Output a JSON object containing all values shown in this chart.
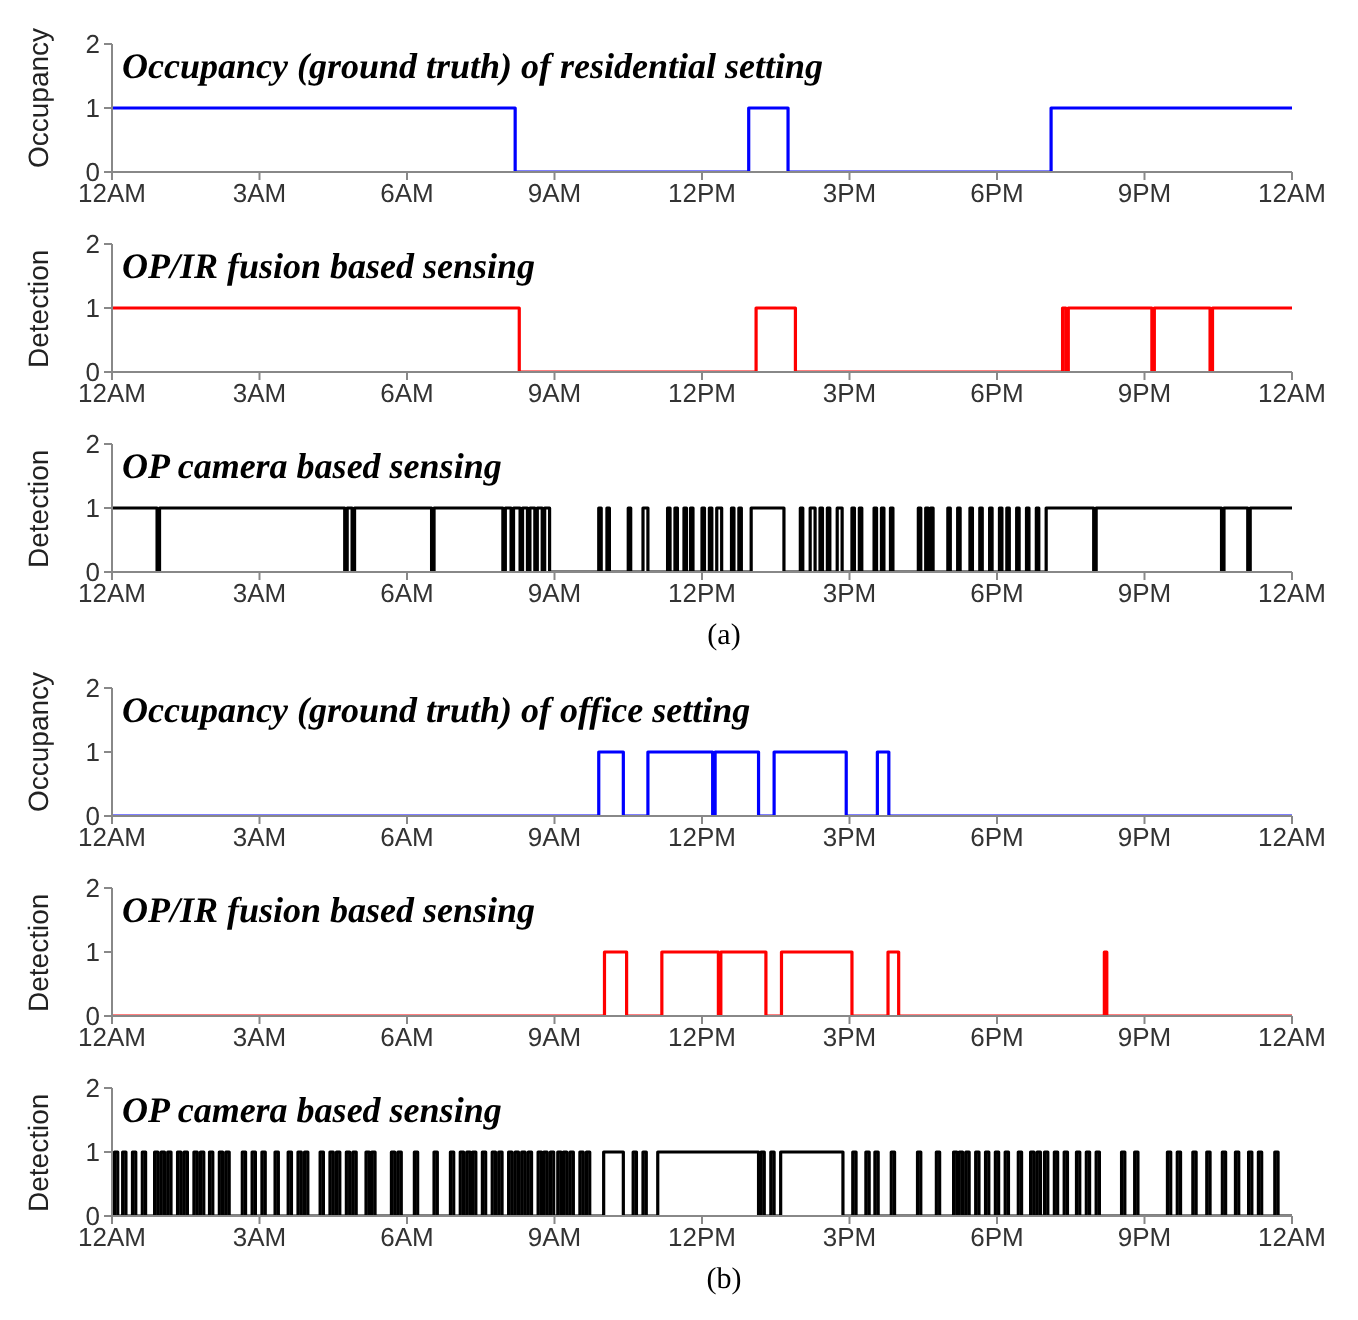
{
  "chart_data": [
    {
      "type": "step",
      "title": "Occupancy (ground truth) of residential setting",
      "ylabel": "Occupancy",
      "xlim": [
        "--01-01T00:00",
        "--01-02T00:00"
      ],
      "xticks": [
        {
          "value": "--01-01T00:00",
          "label": "12AM"
        },
        {
          "value": "--01-01T03:00",
          "label": "3AM"
        },
        {
          "value": "--01-01T06:00",
          "label": "6AM"
        },
        {
          "value": "--01-01T09:00",
          "label": "9AM"
        },
        {
          "value": "--01-01T12:00",
          "label": "12PM"
        },
        {
          "value": "--01-01T15:00",
          "label": "3PM"
        },
        {
          "value": "--01-01T18:00",
          "label": "6PM"
        },
        {
          "value": "--01-01T21:00",
          "label": "9PM"
        },
        {
          "value": "--01-02T00:00",
          "label": "12AM"
        }
      ],
      "ylim": [
        0,
        2
      ],
      "yticks": [
        0,
        1,
        2
      ],
      "series": [
        {
          "color": "#0000ff",
          "x": [
            "--01-01T00:00",
            "--01-01T08:12",
            "--01-01T12:57",
            "--01-01T13:45",
            "--01-01T19:06",
            "--01-02T00:00"
          ],
          "values": [
            1,
            0,
            1,
            0,
            1,
            1
          ]
        }
      ]
    },
    {
      "type": "step",
      "title": "OP/IR fusion based sensing",
      "ylabel": "Detection",
      "xlim": [
        "--01-01T00:00",
        "--01-02T00:00"
      ],
      "xticks": [
        {
          "value": "--01-01T00:00",
          "label": "12AM"
        },
        {
          "value": "--01-01T03:00",
          "label": "3AM"
        },
        {
          "value": "--01-01T06:00",
          "label": "6AM"
        },
        {
          "value": "--01-01T09:00",
          "label": "9AM"
        },
        {
          "value": "--01-01T12:00",
          "label": "12PM"
        },
        {
          "value": "--01-01T15:00",
          "label": "3PM"
        },
        {
          "value": "--01-01T18:00",
          "label": "6PM"
        },
        {
          "value": "--01-01T21:00",
          "label": "9PM"
        },
        {
          "value": "--01-02T00:00",
          "label": "12AM"
        }
      ],
      "ylim": [
        0,
        2
      ],
      "yticks": [
        0,
        1,
        2
      ],
      "series": [
        {
          "color": "#ff0000",
          "x": [
            "--01-01T00:00",
            "--01-01T08:17",
            "--01-01T13:06",
            "--01-01T13:54",
            "--01-01T19:20",
            "--01-01T19:24",
            "--01-01T19:27",
            "--01-01T21:09",
            "--01-01T21:12",
            "--01-01T22:20",
            "--01-01T22:23",
            "--01-02T00:00"
          ],
          "values": [
            1,
            0,
            1,
            0,
            1,
            0,
            1,
            0,
            1,
            0,
            1,
            1
          ]
        }
      ]
    },
    {
      "type": "step",
      "title": "OP camera based sensing",
      "ylabel": "Detection",
      "xlim": [
        "--01-01T00:00",
        "--01-02T00:00"
      ],
      "xticks": [
        {
          "value": "--01-01T00:00",
          "label": "12AM"
        },
        {
          "value": "--01-01T03:00",
          "label": "3AM"
        },
        {
          "value": "--01-01T06:00",
          "label": "6AM"
        },
        {
          "value": "--01-01T09:00",
          "label": "9AM"
        },
        {
          "value": "--01-01T12:00",
          "label": "12PM"
        },
        {
          "value": "--01-01T15:00",
          "label": "3PM"
        },
        {
          "value": "--01-01T18:00",
          "label": "6PM"
        },
        {
          "value": "--01-01T21:00",
          "label": "9PM"
        },
        {
          "value": "--01-02T00:00",
          "label": "12AM"
        }
      ],
      "ylim": [
        0,
        2
      ],
      "yticks": [
        0,
        1,
        2
      ],
      "annotations": [
        "(a)"
      ],
      "series": [
        {
          "color": "#000000",
          "x": [
            "--01-01T00:00",
            "--01-01T00:55",
            "--01-01T00:58",
            "--01-01T04:44",
            "--01-01T04:47",
            "--01-01T04:53",
            "--01-01T04:56",
            "--01-01T06:30",
            "--01-01T06:33",
            "--01-01T07:57",
            "--01-01T08:00",
            "--01-01T08:07",
            "--01-01T08:10",
            "--01-01T08:18",
            "--01-01T08:21",
            "--01-01T08:27",
            "--01-01T08:30",
            "--01-01T08:36",
            "--01-01T08:39",
            "--01-01T08:45",
            "--01-01T08:48",
            "--01-01T08:54",
            "--01-01T09:54",
            "--01-01T09:57",
            "--01-01T10:04",
            "--01-01T10:07",
            "--01-01T10:30",
            "--01-01T10:33",
            "--01-01T10:48",
            "--01-01T10:54",
            "--01-01T11:18",
            "--01-01T11:21",
            "--01-01T11:27",
            "--01-01T11:30",
            "--01-01T11:38",
            "--01-01T11:41",
            "--01-01T11:46",
            "--01-01T11:49",
            "--01-01T12:00",
            "--01-01T12:03",
            "--01-01T12:09",
            "--01-01T12:12",
            "--01-01T12:18",
            "--01-01T12:24",
            "--01-01T12:36",
            "--01-01T12:39",
            "--01-01T12:45",
            "--01-01T12:48",
            "--01-01T13:00",
            "--01-01T13:40",
            "--01-01T14:00",
            "--01-01T14:03",
            "--01-01T14:12",
            "--01-01T14:18",
            "--01-01T14:24",
            "--01-01T14:27",
            "--01-01T14:33",
            "--01-01T14:36",
            "--01-01T14:45",
            "--01-01T14:51",
            "--01-01T15:03",
            "--01-01T15:06",
            "--01-01T15:12",
            "--01-01T15:15",
            "--01-01T15:30",
            "--01-01T15:33",
            "--01-01T15:39",
            "--01-01T15:42",
            "--01-01T15:50",
            "--01-01T15:53",
            "--01-01T16:24",
            "--01-01T16:27",
            "--01-01T16:33",
            "--01-01T16:36",
            "--01-01T16:39",
            "--01-01T16:42",
            "--01-01T17:00",
            "--01-01T17:03",
            "--01-01T17:12",
            "--01-01T17:15",
            "--01-01T17:27",
            "--01-01T17:30",
            "--01-01T17:39",
            "--01-01T17:42",
            "--01-01T17:51",
            "--01-01T17:54",
            "--01-01T18:03",
            "--01-01T18:06",
            "--01-01T18:12",
            "--01-01T18:15",
            "--01-01T18:24",
            "--01-01T18:27",
            "--01-01T18:36",
            "--01-01T18:39",
            "--01-01T18:48",
            "--01-01T18:51",
            "--01-01T19:00",
            "--01-01T19:58",
            "--01-01T20:01",
            "--01-01T22:34",
            "--01-01T22:37",
            "--01-01T23:06",
            "--01-01T23:09",
            "--01-02T00:00"
          ],
          "values": [
            1,
            0,
            1,
            0,
            1,
            0,
            1,
            0,
            1,
            0,
            1,
            0,
            1,
            0,
            1,
            0,
            1,
            0,
            1,
            0,
            1,
            0,
            1,
            0,
            1,
            0,
            1,
            0,
            1,
            0,
            1,
            0,
            1,
            0,
            1,
            0,
            1,
            0,
            1,
            0,
            1,
            0,
            1,
            0,
            1,
            0,
            1,
            0,
            1,
            0,
            1,
            0,
            1,
            0,
            1,
            0,
            1,
            0,
            1,
            0,
            1,
            0,
            1,
            0,
            1,
            0,
            1,
            0,
            1,
            0,
            1,
            0,
            1,
            0,
            1,
            0,
            1,
            0,
            1,
            0,
            1,
            0,
            1,
            0,
            1,
            0,
            1,
            0,
            1,
            0,
            1,
            0,
            1,
            0,
            1,
            0,
            1,
            0,
            1,
            0,
            1,
            0,
            1,
            1
          ]
        }
      ]
    },
    {
      "type": "step",
      "title": "Occupancy (ground truth) of office setting",
      "ylabel": "Occupancy",
      "xlim": [
        "--01-01T00:00",
        "--01-02T00:00"
      ],
      "xticks": [
        {
          "value": "--01-01T00:00",
          "label": "12AM"
        },
        {
          "value": "--01-01T03:00",
          "label": "3AM"
        },
        {
          "value": "--01-01T06:00",
          "label": "6AM"
        },
        {
          "value": "--01-01T09:00",
          "label": "9AM"
        },
        {
          "value": "--01-01T12:00",
          "label": "12PM"
        },
        {
          "value": "--01-01T15:00",
          "label": "3PM"
        },
        {
          "value": "--01-01T18:00",
          "label": "6PM"
        },
        {
          "value": "--01-01T21:00",
          "label": "9PM"
        },
        {
          "value": "--01-02T00:00",
          "label": "12AM"
        }
      ],
      "ylim": [
        0,
        2
      ],
      "yticks": [
        0,
        1,
        2
      ],
      "series": [
        {
          "color": "#0000ff",
          "x": [
            "--01-01T00:00",
            "--01-01T09:54",
            "--01-01T10:24",
            "--01-01T10:54",
            "--01-01T12:13",
            "--01-01T12:16",
            "--01-01T13:09",
            "--01-01T13:28",
            "--01-01T14:56",
            "--01-01T15:34",
            "--01-01T15:48",
            "--01-02T00:00"
          ],
          "values": [
            0,
            1,
            0,
            1,
            0,
            1,
            0,
            1,
            0,
            1,
            0,
            0
          ]
        }
      ]
    },
    {
      "type": "step",
      "title": "OP/IR fusion based sensing",
      "ylabel": "Detection",
      "xlim": [
        "--01-01T00:00",
        "--01-02T00:00"
      ],
      "xticks": [
        {
          "value": "--01-01T00:00",
          "label": "12AM"
        },
        {
          "value": "--01-01T03:00",
          "label": "3AM"
        },
        {
          "value": "--01-01T06:00",
          "label": "6AM"
        },
        {
          "value": "--01-01T09:00",
          "label": "9AM"
        },
        {
          "value": "--01-01T12:00",
          "label": "12PM"
        },
        {
          "value": "--01-01T15:00",
          "label": "3PM"
        },
        {
          "value": "--01-01T18:00",
          "label": "6PM"
        },
        {
          "value": "--01-01T21:00",
          "label": "9PM"
        },
        {
          "value": "--01-02T00:00",
          "label": "12AM"
        }
      ],
      "ylim": [
        0,
        2
      ],
      "yticks": [
        0,
        1,
        2
      ],
      "series": [
        {
          "color": "#ff0000",
          "x": [
            "--01-01T00:00",
            "--01-01T10:01",
            "--01-01T10:28",
            "--01-01T11:11",
            "--01-01T12:20",
            "--01-01T12:23",
            "--01-01T13:18",
            "--01-01T13:37",
            "--01-01T15:03",
            "--01-01T15:47",
            "--01-01T16:00",
            "--01-01T20:11",
            "--01-01T20:14",
            "--01-02T00:00"
          ],
          "values": [
            0,
            1,
            0,
            1,
            0,
            1,
            0,
            1,
            0,
            1,
            0,
            1,
            0,
            0
          ]
        }
      ]
    },
    {
      "type": "step",
      "title": "OP camera based sensing",
      "ylabel": "Detection",
      "xlim": [
        "--01-01T00:00",
        "--01-02T00:00"
      ],
      "xticks": [
        {
          "value": "--01-01T00:00",
          "label": "12AM"
        },
        {
          "value": "--01-01T03:00",
          "label": "3AM"
        },
        {
          "value": "--01-01T06:00",
          "label": "6AM"
        },
        {
          "value": "--01-01T09:00",
          "label": "9AM"
        },
        {
          "value": "--01-01T12:00",
          "label": "12PM"
        },
        {
          "value": "--01-01T15:00",
          "label": "3PM"
        },
        {
          "value": "--01-01T18:00",
          "label": "6PM"
        },
        {
          "value": "--01-01T21:00",
          "label": "9PM"
        },
        {
          "value": "--01-02T00:00",
          "label": "12AM"
        }
      ],
      "ylim": [
        0,
        2
      ],
      "yticks": [
        0,
        1,
        2
      ],
      "annotations": [
        "(b)"
      ],
      "series": [
        {
          "color": "#000000",
          "x": [
            "--01-01T00:00",
            "--01-01T00:03",
            "--01-01T00:07",
            "--01-01T00:13",
            "--01-01T00:17",
            "--01-01T00:25",
            "--01-01T00:29",
            "--01-01T00:37",
            "--01-01T00:41",
            "--01-01T00:52",
            "--01-01T00:56",
            "--01-01T01:00",
            "--01-01T01:04",
            "--01-01T01:08",
            "--01-01T01:12",
            "--01-01T01:20",
            "--01-01T01:24",
            "--01-01T01:28",
            "--01-01T01:32",
            "--01-01T01:40",
            "--01-01T01:44",
            "--01-01T01:48",
            "--01-01T01:52",
            "--01-01T01:59",
            "--01-01T02:03",
            "--01-01T02:11",
            "--01-01T02:15",
            "--01-01T02:19",
            "--01-01T02:23",
            "--01-01T02:39",
            "--01-01T02:43",
            "--01-01T02:51",
            "--01-01T02:55",
            "--01-01T03:03",
            "--01-01T03:07",
            "--01-01T03:19",
            "--01-01T03:23",
            "--01-01T03:35",
            "--01-01T03:39",
            "--01-01T03:47",
            "--01-01T03:51",
            "--01-01T03:55",
            "--01-01T03:59",
            "--01-01T04:14",
            "--01-01T04:18",
            "--01-01T04:26",
            "--01-01T04:30",
            "--01-01T04:34",
            "--01-01T04:38",
            "--01-01T04:46",
            "--01-01T04:50",
            "--01-01T04:54",
            "--01-01T04:58",
            "--01-01T05:10",
            "--01-01T05:14",
            "--01-01T05:17",
            "--01-01T05:21",
            "--01-01T05:41",
            "--01-01T05:45",
            "--01-01T05:49",
            "--01-01T05:53",
            "--01-01T06:09",
            "--01-01T06:13",
            "--01-01T06:33",
            "--01-01T06:37",
            "--01-01T06:53",
            "--01-01T06:57",
            "--01-01T07:05",
            "--01-01T07:09",
            "--01-01T07:13",
            "--01-01T07:17",
            "--01-01T07:20",
            "--01-01T07:24",
            "--01-01T07:32",
            "--01-01T07:36",
            "--01-01T07:44",
            "--01-01T07:48",
            "--01-01T07:52",
            "--01-01T07:56",
            "--01-01T08:04",
            "--01-01T08:08",
            "--01-01T08:12",
            "--01-01T08:16",
            "--01-01T08:20",
            "--01-01T08:24",
            "--01-01T08:28",
            "--01-01T08:32",
            "--01-01T08:40",
            "--01-01T08:44",
            "--01-01T08:47",
            "--01-01T08:51",
            "--01-01T08:55",
            "--01-01T08:59",
            "--01-01T09:04",
            "--01-01T09:08",
            "--01-01T09:11",
            "--01-01T09:15",
            "--01-01T09:19",
            "--01-01T09:23",
            "--01-01T09:31",
            "--01-01T09:35",
            "--01-01T09:39",
            "--01-01T09:43",
            "--01-01T10:00",
            "--01-01T10:24",
            "--01-01T10:36",
            "--01-01T10:40",
            "--01-01T10:48",
            "--01-01T10:52",
            "--01-01T11:06",
            "--01-01T13:09",
            "--01-01T13:12",
            "--01-01T13:16",
            "--01-01T13:24",
            "--01-01T13:28",
            "--01-01T13:36",
            "--01-01T14:52",
            "--01-01T15:04",
            "--01-01T15:08",
            "--01-01T15:20",
            "--01-01T15:24",
            "--01-01T15:31",
            "--01-01T15:35",
            "--01-01T15:51",
            "--01-01T15:55",
            "--01-01T16:23",
            "--01-01T16:27",
            "--01-01T16:46",
            "--01-01T16:50",
            "--01-01T17:07",
            "--01-01T17:11",
            "--01-01T17:14",
            "--01-01T17:18",
            "--01-01T17:22",
            "--01-01T17:26",
            "--01-01T17:34",
            "--01-01T17:38",
            "--01-01T17:46",
            "--01-01T17:50",
            "--01-01T17:58",
            "--01-01T18:02",
            "--01-01T18:10",
            "--01-01T18:14",
            "--01-01T18:26",
            "--01-01T18:30",
            "--01-01T18:41",
            "--01-01T18:45",
            "--01-01T18:49",
            "--01-01T18:53",
            "--01-01T18:58",
            "--01-01T19:02",
            "--01-01T19:10",
            "--01-01T19:14",
            "--01-01T19:22",
            "--01-01T19:26",
            "--01-01T19:37",
            "--01-01T19:41",
            "--01-01T19:49",
            "--01-01T19:53",
            "--01-01T20:01",
            "--01-01T20:05",
            "--01-01T20:32",
            "--01-01T20:36",
            "--01-01T20:48",
            "--01-01T20:52",
            "--01-01T21:28",
            "--01-01T21:32",
            "--01-01T21:40",
            "--01-01T21:44",
            "--01-01T21:59",
            "--01-01T22:03",
            "--01-01T22:16",
            "--01-01T22:20",
            "--01-01T22:35",
            "--01-01T22:39",
            "--01-01T22:51",
            "--01-01T22:55",
            "--01-01T23:07",
            "--01-01T23:11",
            "--01-01T23:19",
            "--01-01T23:23",
            "--01-01T23:39",
            "--01-01T23:43",
            "--01-02T00:00"
          ],
          "values": [
            0,
            1,
            0,
            1,
            0,
            1,
            0,
            1,
            0,
            1,
            0,
            1,
            0,
            1,
            0,
            1,
            0,
            1,
            0,
            1,
            0,
            1,
            0,
            1,
            0,
            1,
            0,
            1,
            0,
            1,
            0,
            1,
            0,
            1,
            0,
            1,
            0,
            1,
            0,
            1,
            0,
            1,
            0,
            1,
            0,
            1,
            0,
            1,
            0,
            1,
            0,
            1,
            0,
            1,
            0,
            1,
            0,
            1,
            0,
            1,
            0,
            1,
            0,
            1,
            0,
            1,
            0,
            1,
            0,
            1,
            0,
            1,
            0,
            1,
            0,
            1,
            0,
            1,
            0,
            1,
            0,
            1,
            0,
            1,
            0,
            1,
            0,
            1,
            0,
            1,
            0,
            1,
            0,
            1,
            0,
            1,
            0,
            1,
            0,
            1,
            0,
            1,
            0,
            1,
            0,
            1,
            0,
            1,
            0,
            1,
            0,
            1,
            0,
            1,
            0,
            1,
            0,
            1,
            0,
            1,
            0,
            1,
            0,
            1,
            0,
            1,
            0,
            1,
            0,
            1,
            0,
            1,
            0,
            1,
            0,
            1,
            0,
            1,
            0,
            1,
            0,
            1,
            0,
            1,
            0,
            1,
            0,
            1,
            0,
            1,
            0,
            1,
            0,
            1,
            0,
            1,
            0,
            1,
            0,
            1,
            0,
            1,
            0,
            1,
            0,
            1,
            0,
            1,
            0,
            1,
            0,
            1,
            0,
            1,
            0,
            1,
            0,
            1,
            0,
            1,
            0,
            1,
            0,
            0
          ]
        }
      ]
    }
  ]
}
